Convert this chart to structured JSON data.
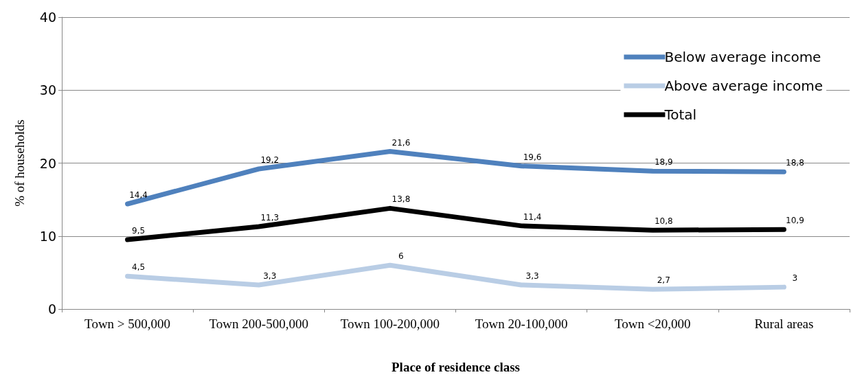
{
  "chart_data": {
    "type": "line",
    "xlabel": "Place of residence class",
    "ylabel": "% of households",
    "categories": [
      "Town > 500,000",
      "Town 200-500,000",
      "Town 100-200,000",
      "Town 20-100,000",
      "Town <20,000",
      "Rural areas"
    ],
    "series": [
      {
        "name": "Below average income",
        "color": "#4f81bd",
        "values": [
          14.4,
          19.2,
          21.6,
          19.6,
          18.9,
          18.8
        ],
        "value_labels": [
          "14,4",
          "19,2",
          "21,6",
          "19,6",
          "18,9",
          "18,8"
        ]
      },
      {
        "name": "Above average income",
        "color": "#b9cde5",
        "values": [
          4.5,
          3.3,
          6,
          3.3,
          2.7,
          3
        ],
        "value_labels": [
          "4,5",
          "3,3",
          "6",
          "3,3",
          "2,7",
          "3"
        ]
      },
      {
        "name": "Total",
        "color": "#000000",
        "values": [
          9.5,
          11.3,
          13.8,
          11.4,
          10.8,
          10.9
        ],
        "value_labels": [
          "9,5",
          "11,3",
          "13,8",
          "11,4",
          "10,8",
          "10,9"
        ]
      }
    ],
    "ylim": [
      0,
      40
    ],
    "yticks": [
      0,
      10,
      20,
      30,
      40
    ],
    "grid": "y",
    "legend": "top right",
    "marker": "none",
    "line_style": "solid"
  }
}
